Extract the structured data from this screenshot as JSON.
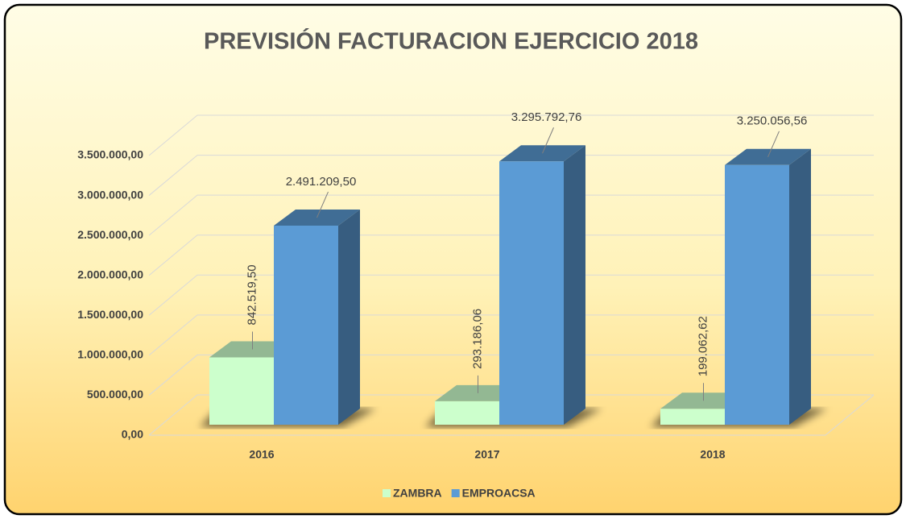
{
  "chart_data": {
    "type": "bar3d",
    "title": "PREVISIÓN FACTURACION EJERCICIO 2018",
    "categories": [
      "2016",
      "2017",
      "2018"
    ],
    "series": [
      {
        "name": "ZAMBRA",
        "color": "#ccffcc",
        "values": [
          842519.5,
          293186.06,
          199062.62
        ],
        "value_labels": [
          "842.519,50",
          "293.186,06",
          "199.062,62"
        ]
      },
      {
        "name": "EMPROACSA",
        "color": "#5b9bd5",
        "values": [
          2491209.5,
          3295792.76,
          3250056.56
        ],
        "value_labels": [
          "2.491.209,50",
          "3.295.792,76",
          "3.250.056,56"
        ]
      }
    ],
    "ylim": [
      0,
      3500000
    ],
    "yticks": [
      {
        "value": 0,
        "label": "0,00"
      },
      {
        "value": 500000,
        "label": "500.000,00"
      },
      {
        "value": 1000000,
        "label": "1.000.000,00"
      },
      {
        "value": 1500000,
        "label": "1.500.000,00"
      },
      {
        "value": 2000000,
        "label": "2.000.000,00"
      },
      {
        "value": 2500000,
        "label": "2.500.000,00"
      },
      {
        "value": 3000000,
        "label": "3.000.000,00"
      },
      {
        "value": 3500000,
        "label": "3.500.000,00"
      }
    ],
    "grid": true,
    "legend": "bottom"
  }
}
